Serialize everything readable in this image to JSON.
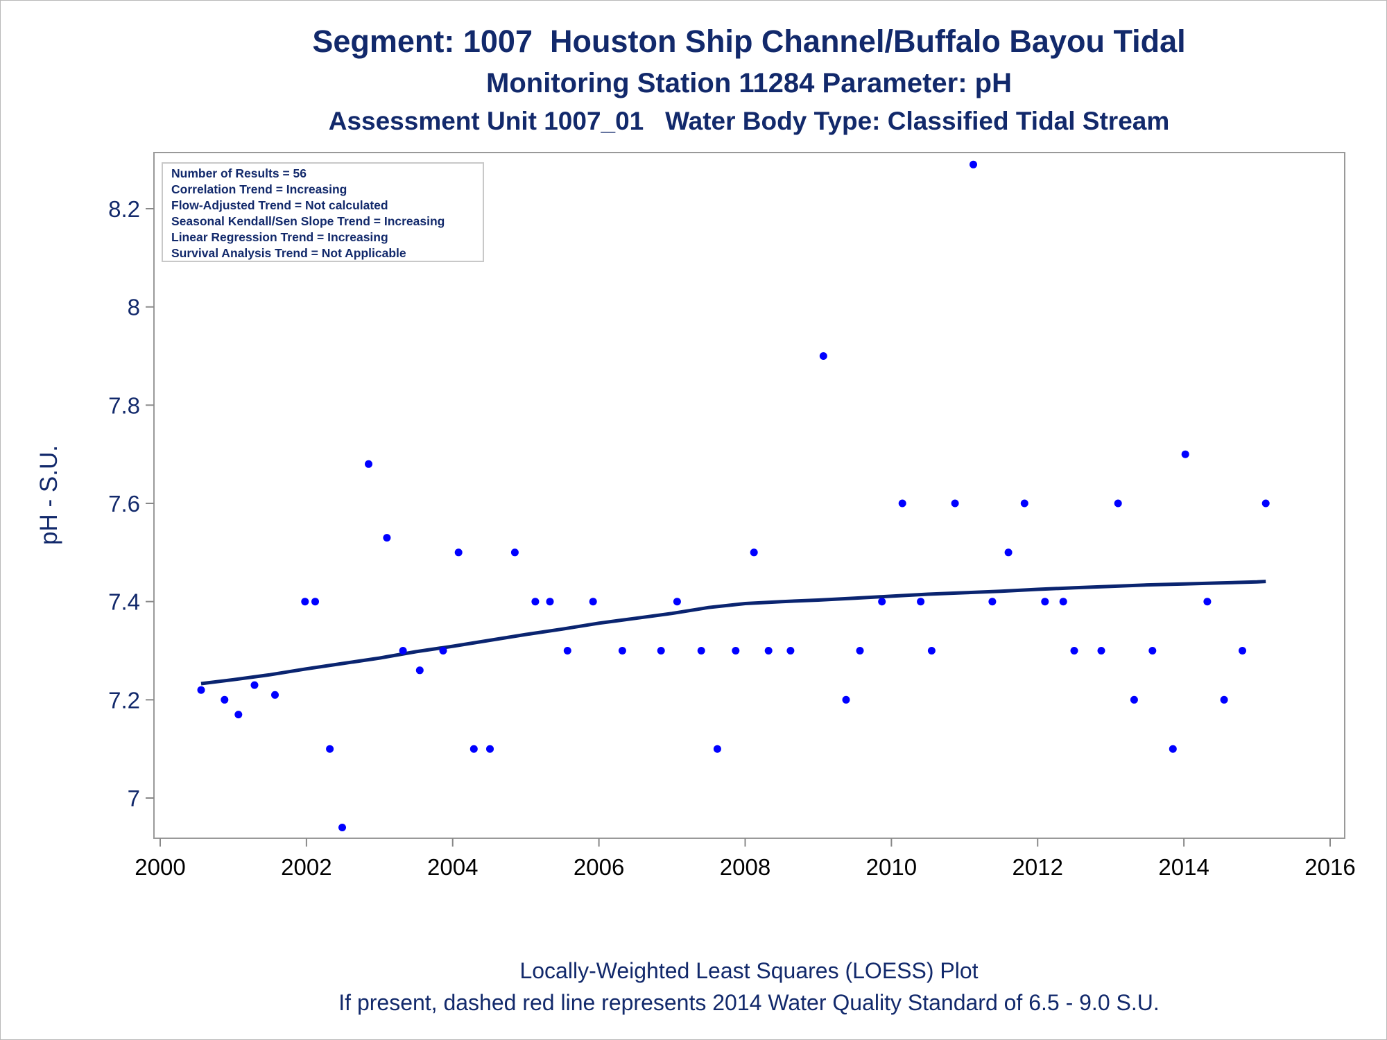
{
  "titles": {
    "line1": "Segment: 1007  Houston Ship Channel/Buffalo Bayou Tidal",
    "line2": "Monitoring Station 11284 Parameter: pH",
    "line3": "Assessment Unit 1007_01   Water Body Type: Classified Tidal Stream"
  },
  "footer": {
    "line1": "Locally-Weighted Least Squares (LOESS) Plot",
    "line2": "If present, dashed red line represents 2014 Water Quality Standard of 6.5 - 9.0 S.U."
  },
  "stats_box": [
    "Number of Results = 56",
    "Correlation Trend = Increasing",
    "Flow-Adjusted Trend = Not calculated",
    "Seasonal Kendall/Sen Slope Trend = Increasing",
    "Linear Regression Trend = Increasing",
    "Survival Analysis Trend = Not Applicable"
  ],
  "colors": {
    "text": "#12296b",
    "points": "#0000ff",
    "trend_line": "#0a2470",
    "axis": "#888888"
  },
  "chart_data": {
    "type": "scatter",
    "title": "Segment: 1007  Houston Ship Channel/Buffalo Bayou Tidal",
    "xlabel": "",
    "ylabel": "pH - S.U.",
    "xlim": [
      2000,
      2016
    ],
    "ylim": [
      6.94,
      8.32
    ],
    "x_ticks": [
      2000,
      2002,
      2004,
      2006,
      2008,
      2010,
      2012,
      2014,
      2016
    ],
    "x_tick_labels": [
      "2000",
      "2002",
      "2004",
      "2006",
      "2008",
      "2010",
      "2012",
      "2014",
      "2016"
    ],
    "y_ticks": [
      7.0,
      7.2,
      7.4,
      7.6,
      7.8,
      8.0,
      8.2
    ],
    "y_tick_labels": [
      "7",
      "7.2",
      "7.4",
      "7.6",
      "7.8",
      "8",
      "8.2"
    ],
    "grid": false,
    "legend": "top-left",
    "points": [
      {
        "x": 2000.56,
        "y": 7.22
      },
      {
        "x": 2000.88,
        "y": 7.2
      },
      {
        "x": 2001.07,
        "y": 7.17
      },
      {
        "x": 2001.29,
        "y": 7.23
      },
      {
        "x": 2001.57,
        "y": 7.21
      },
      {
        "x": 2001.98,
        "y": 7.4
      },
      {
        "x": 2002.12,
        "y": 7.4
      },
      {
        "x": 2002.32,
        "y": 7.1
      },
      {
        "x": 2002.49,
        "y": 6.94
      },
      {
        "x": 2002.85,
        "y": 7.68
      },
      {
        "x": 2003.1,
        "y": 7.53
      },
      {
        "x": 2003.32,
        "y": 7.3
      },
      {
        "x": 2003.55,
        "y": 7.26
      },
      {
        "x": 2003.87,
        "y": 7.3
      },
      {
        "x": 2004.08,
        "y": 7.5
      },
      {
        "x": 2004.29,
        "y": 7.1
      },
      {
        "x": 2004.51,
        "y": 7.1
      },
      {
        "x": 2004.85,
        "y": 7.5
      },
      {
        "x": 2005.13,
        "y": 7.4
      },
      {
        "x": 2005.33,
        "y": 7.4
      },
      {
        "x": 2005.57,
        "y": 7.3
      },
      {
        "x": 2005.92,
        "y": 7.4
      },
      {
        "x": 2006.32,
        "y": 7.3
      },
      {
        "x": 2006.85,
        "y": 7.3
      },
      {
        "x": 2007.07,
        "y": 7.4
      },
      {
        "x": 2007.4,
        "y": 7.3
      },
      {
        "x": 2007.62,
        "y": 7.1
      },
      {
        "x": 2007.87,
        "y": 7.3
      },
      {
        "x": 2008.12,
        "y": 7.5
      },
      {
        "x": 2008.32,
        "y": 7.3
      },
      {
        "x": 2008.62,
        "y": 7.3
      },
      {
        "x": 2009.07,
        "y": 7.9
      },
      {
        "x": 2009.38,
        "y": 7.2
      },
      {
        "x": 2009.57,
        "y": 7.3
      },
      {
        "x": 2009.87,
        "y": 7.4
      },
      {
        "x": 2010.15,
        "y": 7.6
      },
      {
        "x": 2010.4,
        "y": 7.4
      },
      {
        "x": 2010.55,
        "y": 7.3
      },
      {
        "x": 2010.87,
        "y": 7.6
      },
      {
        "x": 2011.12,
        "y": 8.29
      },
      {
        "x": 2011.38,
        "y": 7.4
      },
      {
        "x": 2011.6,
        "y": 7.5
      },
      {
        "x": 2011.82,
        "y": 7.6
      },
      {
        "x": 2012.1,
        "y": 7.4
      },
      {
        "x": 2012.35,
        "y": 7.4
      },
      {
        "x": 2012.5,
        "y": 7.3
      },
      {
        "x": 2012.87,
        "y": 7.3
      },
      {
        "x": 2013.1,
        "y": 7.6
      },
      {
        "x": 2013.32,
        "y": 7.2
      },
      {
        "x": 2013.57,
        "y": 7.3
      },
      {
        "x": 2013.85,
        "y": 7.1
      },
      {
        "x": 2014.02,
        "y": 7.7
      },
      {
        "x": 2014.32,
        "y": 7.4
      },
      {
        "x": 2014.55,
        "y": 7.2
      },
      {
        "x": 2014.8,
        "y": 7.3
      },
      {
        "x": 2015.12,
        "y": 7.6
      }
    ],
    "loess_line": [
      {
        "x": 2000.56,
        "y": 7.233
      },
      {
        "x": 2001.0,
        "y": 7.241
      },
      {
        "x": 2001.5,
        "y": 7.251
      },
      {
        "x": 2002.0,
        "y": 7.263
      },
      {
        "x": 2002.5,
        "y": 7.274
      },
      {
        "x": 2003.0,
        "y": 7.285
      },
      {
        "x": 2003.5,
        "y": 7.298
      },
      {
        "x": 2004.0,
        "y": 7.309
      },
      {
        "x": 2004.5,
        "y": 7.321
      },
      {
        "x": 2005.0,
        "y": 7.333
      },
      {
        "x": 2005.5,
        "y": 7.344
      },
      {
        "x": 2006.0,
        "y": 7.356
      },
      {
        "x": 2006.5,
        "y": 7.366
      },
      {
        "x": 2007.0,
        "y": 7.376
      },
      {
        "x": 2007.5,
        "y": 7.388
      },
      {
        "x": 2008.0,
        "y": 7.396
      },
      {
        "x": 2008.5,
        "y": 7.4
      },
      {
        "x": 2009.0,
        "y": 7.403
      },
      {
        "x": 2009.5,
        "y": 7.407
      },
      {
        "x": 2010.0,
        "y": 7.411
      },
      {
        "x": 2010.5,
        "y": 7.415
      },
      {
        "x": 2011.0,
        "y": 7.418
      },
      {
        "x": 2011.5,
        "y": 7.421
      },
      {
        "x": 2012.0,
        "y": 7.425
      },
      {
        "x": 2012.5,
        "y": 7.428
      },
      {
        "x": 2013.0,
        "y": 7.431
      },
      {
        "x": 2013.5,
        "y": 7.434
      },
      {
        "x": 2014.0,
        "y": 7.436
      },
      {
        "x": 2014.5,
        "y": 7.438
      },
      {
        "x": 2015.0,
        "y": 7.44
      },
      {
        "x": 2015.12,
        "y": 7.441
      }
    ]
  }
}
